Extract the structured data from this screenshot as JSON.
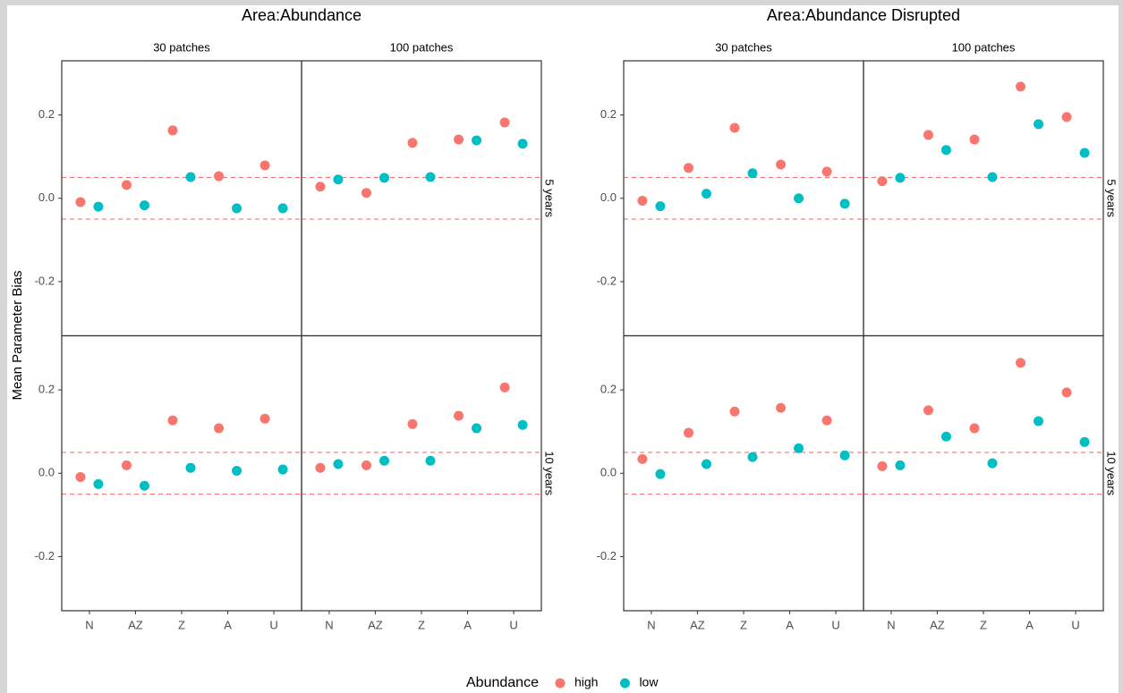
{
  "y_axis_label": "Mean Parameter Bias",
  "legend": {
    "title": "Abundance",
    "series": [
      {
        "name": "high",
        "color": "#f8766d"
      },
      {
        "name": "low",
        "color": "#00bfc4"
      }
    ]
  },
  "chart_data": [
    {
      "type": "dot",
      "title": "Area:Abundance",
      "columns": [
        "30 patches",
        "100 patches"
      ],
      "rows": [
        "5 years",
        "10 years"
      ],
      "categories": [
        "N",
        "AZ",
        "Z",
        "A",
        "U"
      ],
      "ylim": [
        -0.33,
        0.33
      ],
      "yticks": [
        -0.2,
        {
          "value": 0,
          "label": "0.0"
        },
        0.2
      ],
      "hlines": [
        -0.05,
        0.05
      ],
      "panels": [
        [
          {
            "series": [
              {
                "values": [
                  -0.009,
                  0.032,
                  0.163,
                  0.053,
                  0.079
                ]
              },
              {
                "values": [
                  -0.02,
                  -0.017,
                  0.051,
                  -0.024,
                  -0.024
                ]
              }
            ]
          },
          {
            "series": [
              {
                "values": [
                  0.028,
                  0.013,
                  0.133,
                  0.141,
                  0.182
                ]
              },
              {
                "values": [
                  0.045,
                  0.049,
                  0.051,
                  0.139,
                  0.131
                ]
              }
            ]
          }
        ],
        [
          {
            "series": [
              {
                "values": [
                  -0.009,
                  0.019,
                  0.127,
                  0.108,
                  0.131
                ]
              },
              {
                "values": [
                  -0.026,
                  -0.03,
                  0.013,
                  0.006,
                  0.009
                ]
              }
            ]
          },
          {
            "series": [
              {
                "values": [
                  0.013,
                  0.019,
                  0.118,
                  0.138,
                  0.206
                ]
              },
              {
                "values": [
                  0.022,
                  0.03,
                  0.03,
                  0.108,
                  0.116
                ]
              }
            ]
          }
        ]
      ]
    },
    {
      "type": "dot",
      "title": "Area:Abundance Disrupted",
      "columns": [
        "30 patches",
        "100 patches"
      ],
      "rows": [
        "5 years",
        "10 years"
      ],
      "categories": [
        "N",
        "AZ",
        "Z",
        "A",
        "U"
      ],
      "ylim": [
        -0.33,
        0.33
      ],
      "yticks": [
        -0.2,
        {
          "value": 0,
          "label": "0.0"
        },
        0.2
      ],
      "hlines": [
        -0.05,
        0.05
      ],
      "panels": [
        [
          {
            "series": [
              {
                "values": [
                  -0.006,
                  0.073,
                  0.169,
                  0.081,
                  0.064
                ]
              },
              {
                "values": [
                  -0.019,
                  0.011,
                  0.06,
                  0.0,
                  -0.013
                ]
              }
            ]
          },
          {
            "series": [
              {
                "values": [
                  0.041,
                  0.152,
                  0.141,
                  0.268,
                  0.195
                ]
              },
              {
                "values": [
                  0.049,
                  0.116,
                  0.051,
                  0.178,
                  0.109
                ]
              }
            ]
          }
        ],
        [
          {
            "series": [
              {
                "values": [
                  0.034,
                  0.097,
                  0.148,
                  0.157,
                  0.127
                ]
              },
              {
                "values": [
                  -0.002,
                  0.022,
                  0.039,
                  0.06,
                  0.043
                ]
              }
            ]
          },
          {
            "series": [
              {
                "values": [
                  0.017,
                  0.151,
                  0.108,
                  0.265,
                  0.194
                ]
              },
              {
                "values": [
                  0.019,
                  0.088,
                  0.024,
                  0.125,
                  0.075
                ]
              }
            ]
          }
        ]
      ]
    }
  ]
}
